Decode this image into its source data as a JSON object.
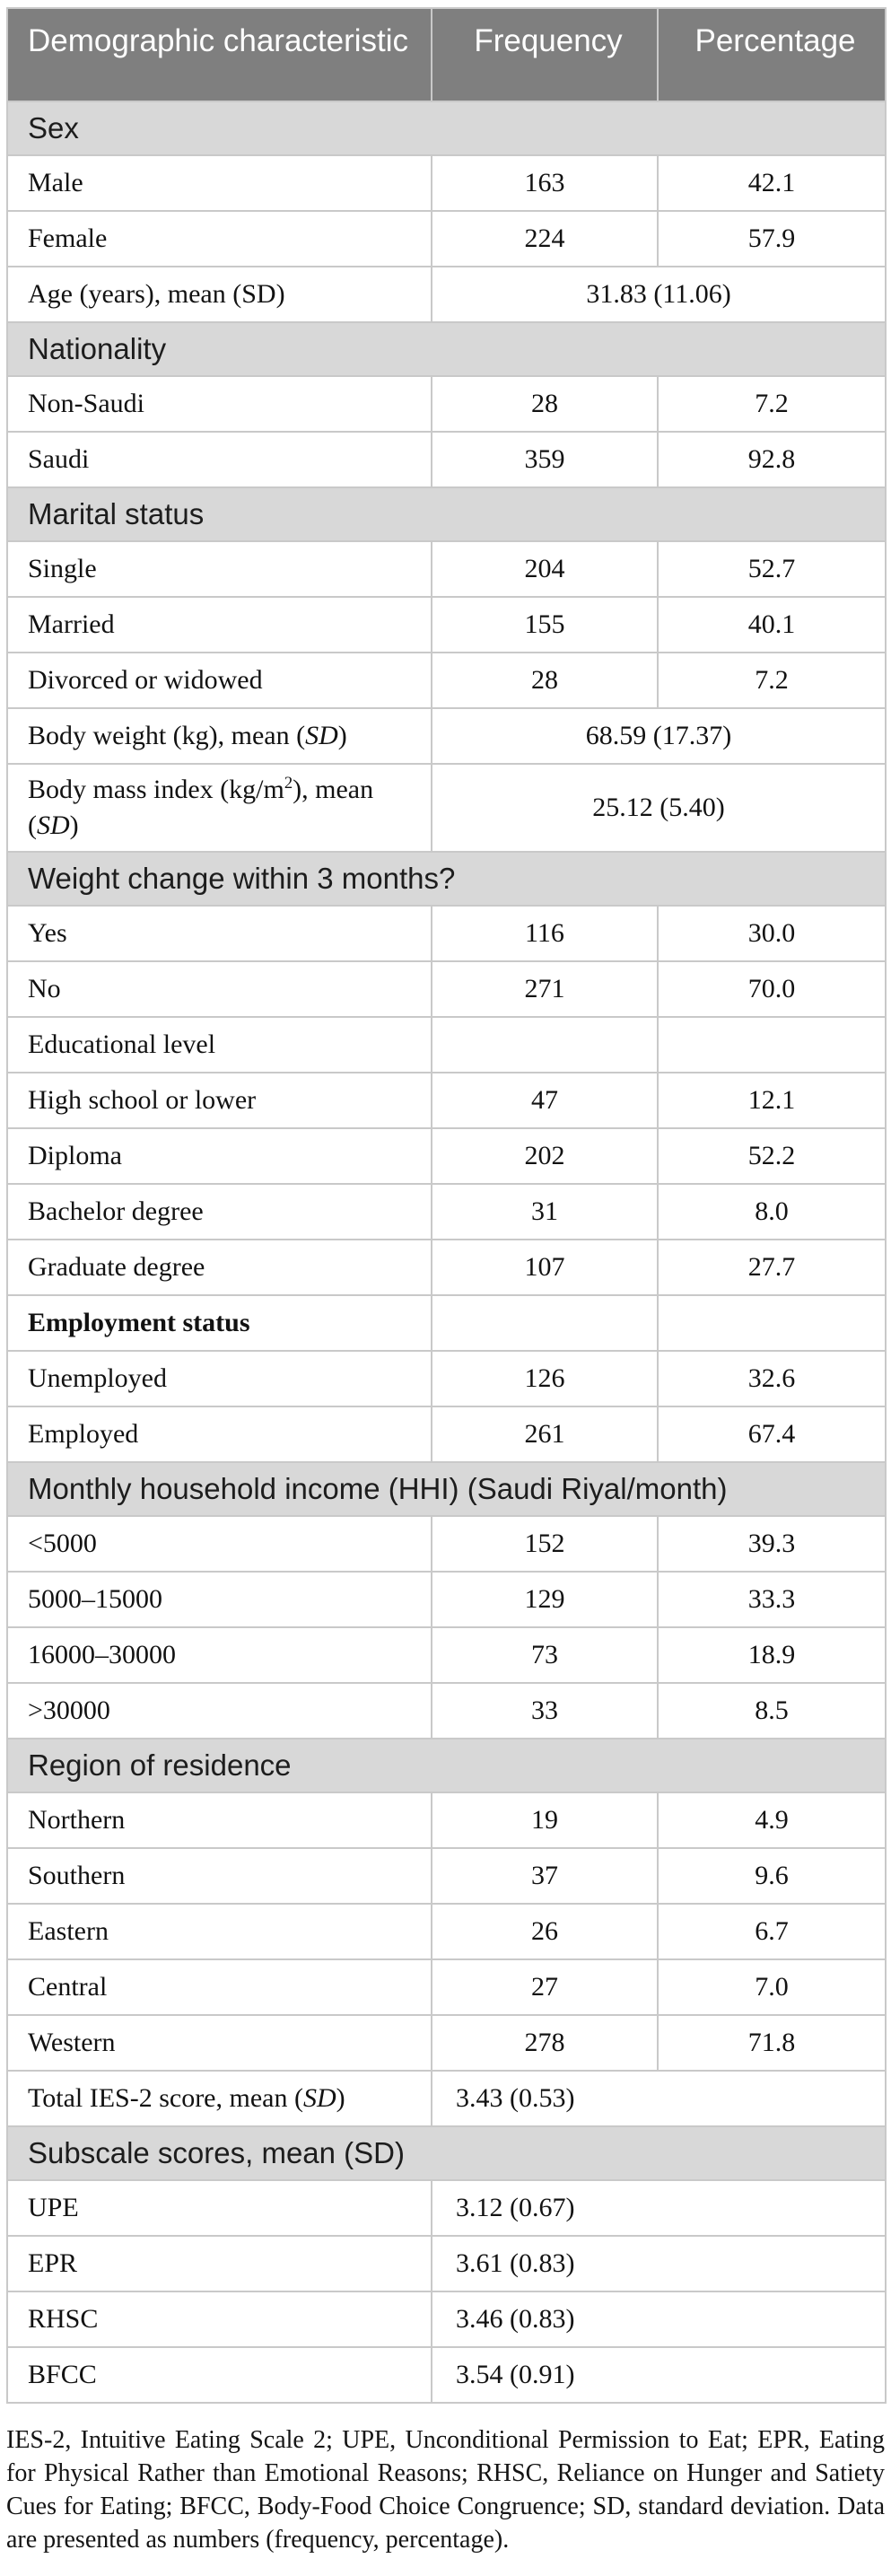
{
  "table": {
    "columns": [
      "Demographic characteristic",
      "Frequency",
      "Percentage"
    ],
    "rows": [
      {
        "type": "section",
        "label": "Sex"
      },
      {
        "type": "data",
        "label": "Male",
        "frequency": "163",
        "percentage": "42.1"
      },
      {
        "type": "data",
        "label": "Female",
        "frequency": "224",
        "percentage": "57.9"
      },
      {
        "type": "merged",
        "align": "center",
        "label": "Age (years), mean (SD)",
        "sd_italic": false,
        "value": "31.83 (11.06)"
      },
      {
        "type": "section",
        "label": "Nationality"
      },
      {
        "type": "data",
        "label": "Non-Saudi",
        "frequency": "28",
        "percentage": "7.2"
      },
      {
        "type": "data",
        "label": "Saudi",
        "frequency": "359",
        "percentage": "92.8"
      },
      {
        "type": "section",
        "label": "Marital status"
      },
      {
        "type": "data",
        "label": "Single",
        "frequency": "204",
        "percentage": "52.7"
      },
      {
        "type": "data",
        "label": "Married",
        "frequency": "155",
        "percentage": "40.1"
      },
      {
        "type": "data",
        "label": "Divorced or widowed",
        "frequency": "28",
        "percentage": "7.2"
      },
      {
        "type": "merged",
        "align": "center",
        "label": "Body weight (kg), mean (SD)",
        "sd_italic": true,
        "value": "68.59 (17.37)"
      },
      {
        "type": "merged",
        "align": "center",
        "label": "Body mass index (kg/m²), mean (SD)",
        "sd_italic": true,
        "value": "25.12 (5.40)"
      },
      {
        "type": "section",
        "label": "Weight change within 3 months?"
      },
      {
        "type": "data",
        "label": "Yes",
        "frequency": "116",
        "percentage": "30.0"
      },
      {
        "type": "data",
        "label": "No",
        "frequency": "271",
        "percentage": "70.0"
      },
      {
        "type": "data",
        "label": "Educational level",
        "frequency": "",
        "percentage": ""
      },
      {
        "type": "data",
        "label": "High school or lower",
        "frequency": "47",
        "percentage": "12.1"
      },
      {
        "type": "data",
        "label": "Diploma",
        "frequency": "202",
        "percentage": "52.2"
      },
      {
        "type": "data",
        "label": "Bachelor degree",
        "frequency": "31",
        "percentage": "8.0"
      },
      {
        "type": "data",
        "label": "Graduate degree",
        "frequency": "107",
        "percentage": "27.7"
      },
      {
        "type": "data",
        "label": "Employment status",
        "bold": true,
        "frequency": "",
        "percentage": ""
      },
      {
        "type": "data",
        "label": "Unemployed",
        "frequency": "126",
        "percentage": "32.6"
      },
      {
        "type": "data",
        "label": "Employed",
        "frequency": "261",
        "percentage": "67.4"
      },
      {
        "type": "section",
        "label": "Monthly household income (HHI) (Saudi Riyal/month)"
      },
      {
        "type": "data",
        "label": "<5000",
        "frequency": "152",
        "percentage": "39.3"
      },
      {
        "type": "data",
        "label": "5000–15000",
        "frequency": "129",
        "percentage": "33.3"
      },
      {
        "type": "data",
        "label": "16000–30000",
        "frequency": "73",
        "percentage": "18.9"
      },
      {
        "type": "data",
        "label": ">30000",
        "frequency": "33",
        "percentage": "8.5"
      },
      {
        "type": "section",
        "label": "Region of residence"
      },
      {
        "type": "data",
        "label": "Northern",
        "frequency": "19",
        "percentage": "4.9"
      },
      {
        "type": "data",
        "label": "Southern",
        "frequency": "37",
        "percentage": "9.6"
      },
      {
        "type": "data",
        "label": "Eastern",
        "frequency": "26",
        "percentage": "6.7"
      },
      {
        "type": "data",
        "label": "Central",
        "frequency": "27",
        "percentage": "7.0"
      },
      {
        "type": "data",
        "label": "Western",
        "frequency": "278",
        "percentage": "71.8"
      },
      {
        "type": "merged",
        "align": "left",
        "label": "Total IES-2 score, mean (SD)",
        "sd_italic": true,
        "value": "3.43 (0.53)"
      },
      {
        "type": "section",
        "label": "Subscale scores, mean (SD)"
      },
      {
        "type": "merged",
        "align": "left",
        "label": "UPE",
        "value": "3.12 (0.67)"
      },
      {
        "type": "merged",
        "align": "left",
        "label": "EPR",
        "value": "3.61 (0.83)"
      },
      {
        "type": "merged",
        "align": "left",
        "label": "RHSC",
        "value": "3.46 (0.83)"
      },
      {
        "type": "merged",
        "align": "left",
        "label": "BFCC",
        "value": "3.54 (0.91)"
      }
    ]
  },
  "footnote": "IES-2, Intuitive Eating Scale 2; UPE, Unconditional Permission to Eat; EPR, Eating for Physical Rather than Emotional Reasons; RHSC, Reliance on Hunger and Satiety Cues for Eating; BFCC, Body-Food Choice Congruence; SD, standard deviation. Data are presented as numbers (frequency, percentage).",
  "colors": {
    "header_bg": "#7f7f7f",
    "header_text": "#ffffff",
    "section_bg": "#d8d8d8",
    "row_bg": "#ffffff",
    "border": "#c9c9c9",
    "text": "#121212"
  }
}
